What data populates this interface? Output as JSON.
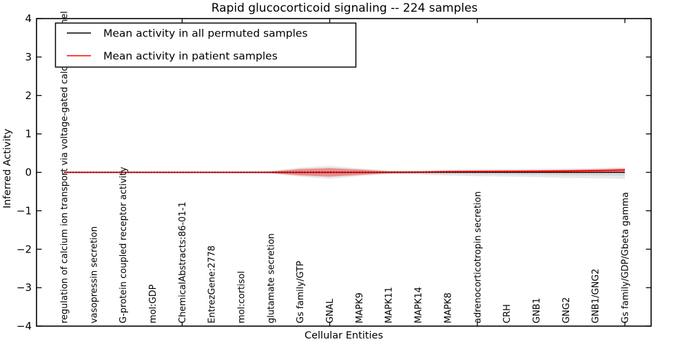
{
  "figure": {
    "title": "Rapid glucocorticoid signaling -- 224 samples"
  },
  "chart_data": {
    "type": "line",
    "title": "Rapid glucocorticoid signaling -- 224 samples",
    "xlabel": "Cellular Entities",
    "ylabel": "Inferred Activity",
    "ylim": [
      -4,
      4
    ],
    "yticks": [
      4,
      3,
      2,
      1,
      0,
      -1,
      -2,
      -3,
      -4
    ],
    "grid": false,
    "legend_position": "upper left",
    "x_categories": [
      "regulation of calcium ion transport via voltage-gated calcium channel",
      "vasopressin secretion",
      "G-protein coupled receptor activity",
      "mol:GDP",
      "ChemicalAbstracts:86-01-1",
      "EntrezGene:2778",
      "mol:cortisol",
      "glutamate secretion",
      "Gs family/GTP",
      "GNAL",
      "MAPK9",
      "MAPK11",
      "MAPK14",
      "MAPK8",
      "adrenocorticotropin secretion",
      "CRH",
      "GNB1",
      "GNG2",
      "GNB1/GNG2",
      "Gs family/GDP/Gbeta gamma"
    ],
    "x_major_ticks": [
      5,
      10,
      15,
      20
    ],
    "series": [
      {
        "name": "Mean activity in all permuted samples",
        "color": "#000000",
        "values": [
          0,
          0,
          0,
          0,
          0,
          0,
          0,
          0,
          0,
          0,
          0,
          0,
          0,
          0,
          0,
          0,
          0,
          0,
          0,
          0
        ]
      },
      {
        "name": "Mean activity in patient samples",
        "color": "#ff0000",
        "values": [
          0,
          0,
          0,
          0,
          0,
          0,
          0,
          0,
          0,
          0,
          0,
          0,
          0.005,
          0.015,
          0.02,
          0.025,
          0.03,
          0.035,
          0.045,
          0.06
        ]
      }
    ],
    "bands": [
      {
        "name": "permuted-samples-range-outer",
        "color": "#999999",
        "alpha": 0.22,
        "upper": [
          0.02,
          0.02,
          0.02,
          0.02,
          0.02,
          0.02,
          0.025,
          0.035,
          0.125,
          0.17,
          0.105,
          0.05,
          0.05,
          0.07,
          0.08,
          0.08,
          0.09,
          0.1,
          0.115,
          0.13
        ],
        "lower": [
          -0.02,
          -0.02,
          -0.02,
          -0.02,
          -0.02,
          -0.02,
          -0.025,
          -0.035,
          -0.115,
          -0.17,
          -0.1,
          -0.05,
          -0.055,
          -0.085,
          -0.1,
          -0.11,
          -0.125,
          -0.145,
          -0.155,
          -0.17
        ]
      },
      {
        "name": "permuted-samples-range-inner",
        "color": "#999999",
        "alpha": 0.22,
        "upper": [
          0.01,
          0.01,
          0.01,
          0.01,
          0.01,
          0.01,
          0.013,
          0.018,
          0.07,
          0.095,
          0.055,
          0.025,
          0.025,
          0.035,
          0.04,
          0.04,
          0.045,
          0.05,
          0.06,
          0.065
        ],
        "lower": [
          -0.01,
          -0.01,
          -0.01,
          -0.01,
          -0.01,
          -0.01,
          -0.013,
          -0.018,
          -0.06,
          -0.095,
          -0.05,
          -0.025,
          -0.028,
          -0.045,
          -0.05,
          -0.055,
          -0.065,
          -0.075,
          -0.08,
          -0.09
        ]
      },
      {
        "name": "patient-samples-range",
        "color": "#ff0000",
        "alpha": 0.35,
        "upper": [
          0.015,
          0.015,
          0.015,
          0.015,
          0.015,
          0.015,
          0.015,
          0.02,
          0.09,
          0.115,
          0.075,
          0.03,
          0.03,
          0.045,
          0.05,
          0.055,
          0.055,
          0.065,
          0.08,
          0.1
        ],
        "lower": [
          -0.015,
          -0.015,
          -0.015,
          -0.015,
          -0.015,
          -0.015,
          -0.015,
          -0.02,
          -0.08,
          -0.115,
          -0.07,
          -0.025,
          -0.02,
          -0.01,
          -0.01,
          -0.01,
          -0.012,
          -0.015,
          -0.015,
          -0.005
        ]
      }
    ],
    "legend": {
      "entries": [
        {
          "label": "Mean activity in all permuted samples",
          "color": "#000000"
        },
        {
          "label": "Mean activity in patient samples",
          "color": "#ff0000"
        }
      ]
    }
  }
}
